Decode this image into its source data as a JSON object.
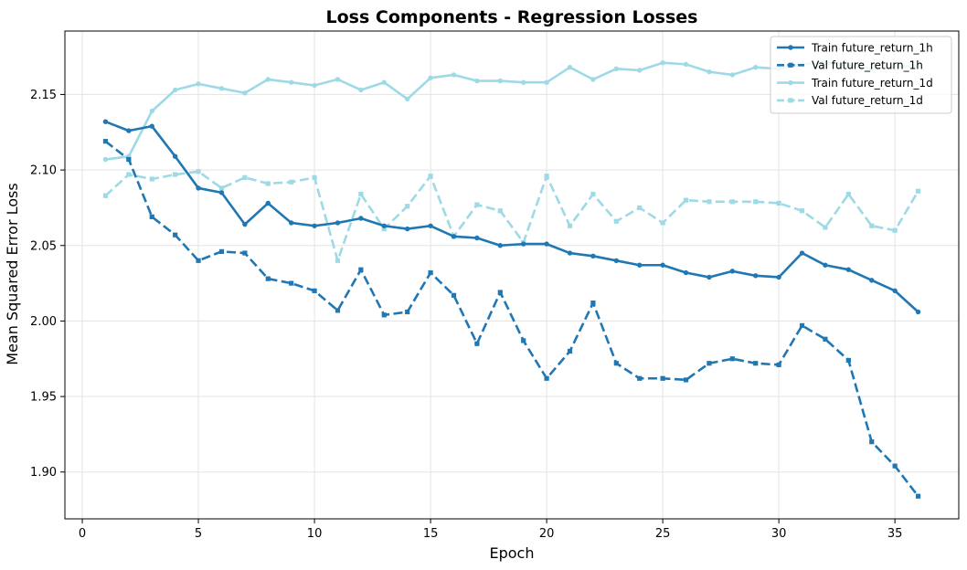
{
  "chart_data": {
    "type": "line",
    "title": "Loss Components - Regression Losses",
    "xlabel": "Epoch",
    "ylabel": "Mean Squared Error Loss",
    "xlim": [
      -0.75,
      37.75
    ],
    "ylim": [
      1.869,
      2.192
    ],
    "xticks": [
      0,
      5,
      10,
      15,
      20,
      25,
      30,
      35
    ],
    "yticks": [
      1.9,
      1.95,
      2.0,
      2.05,
      2.1,
      2.15
    ],
    "ytick_labels": [
      "1.90",
      "1.95",
      "2.00",
      "2.05",
      "2.10",
      "2.15"
    ],
    "grid": true,
    "legend_position": "top-right",
    "x": [
      1,
      2,
      3,
      4,
      5,
      6,
      7,
      8,
      9,
      10,
      11,
      12,
      13,
      14,
      15,
      16,
      17,
      18,
      19,
      20,
      21,
      22,
      23,
      24,
      25,
      26,
      27,
      28,
      29,
      30,
      31,
      32,
      33,
      34,
      35,
      36
    ],
    "series": [
      {
        "name": "Train future_return_1h",
        "color": "#1f77b4",
        "style": "solid",
        "marker": "circle",
        "values": [
          2.132,
          2.126,
          2.129,
          2.109,
          2.088,
          2.085,
          2.064,
          2.078,
          2.065,
          2.063,
          2.065,
          2.068,
          2.063,
          2.061,
          2.063,
          2.056,
          2.055,
          2.05,
          2.051,
          2.051,
          2.045,
          2.043,
          2.04,
          2.037,
          2.037,
          2.032,
          2.029,
          2.033,
          2.03,
          2.029,
          2.045,
          2.037,
          2.034,
          2.027,
          2.02,
          2.006
        ]
      },
      {
        "name": "Val future_return_1h",
        "color": "#1f77b4",
        "style": "dashed",
        "marker": "square",
        "values": [
          2.119,
          2.107,
          2.069,
          2.057,
          2.04,
          2.046,
          2.045,
          2.028,
          2.025,
          2.02,
          2.007,
          2.034,
          2.004,
          2.006,
          2.032,
          2.017,
          1.985,
          2.019,
          1.987,
          1.962,
          1.98,
          2.012,
          1.972,
          1.962,
          1.962,
          1.961,
          1.972,
          1.975,
          1.972,
          1.971,
          1.997,
          1.988,
          1.974,
          1.92,
          1.904,
          1.884
        ]
      },
      {
        "name": "Train future_return_1d",
        "color": "#9edae5",
        "style": "solid",
        "marker": "circle",
        "values": [
          2.107,
          2.109,
          2.139,
          2.153,
          2.157,
          2.154,
          2.151,
          2.16,
          2.158,
          2.156,
          2.16,
          2.153,
          2.158,
          2.147,
          2.161,
          2.163,
          2.159,
          2.159,
          2.158,
          2.158,
          2.168,
          2.16,
          2.167,
          2.166,
          2.171,
          2.17,
          2.165,
          2.163,
          2.168,
          2.167,
          2.17,
          2.171,
          2.169,
          2.167,
          2.168,
          2.169
        ]
      },
      {
        "name": "Val future_return_1d",
        "color": "#9edae5",
        "style": "dashed",
        "marker": "square",
        "values": [
          2.083,
          2.097,
          2.094,
          2.097,
          2.099,
          2.088,
          2.095,
          2.091,
          2.092,
          2.095,
          2.04,
          2.084,
          2.061,
          2.076,
          2.096,
          2.056,
          2.077,
          2.073,
          2.052,
          2.096,
          2.063,
          2.084,
          2.066,
          2.075,
          2.065,
          2.08,
          2.079,
          2.079,
          2.079,
          2.078,
          2.073,
          2.062,
          2.084,
          2.063,
          2.06,
          2.086
        ]
      }
    ]
  }
}
